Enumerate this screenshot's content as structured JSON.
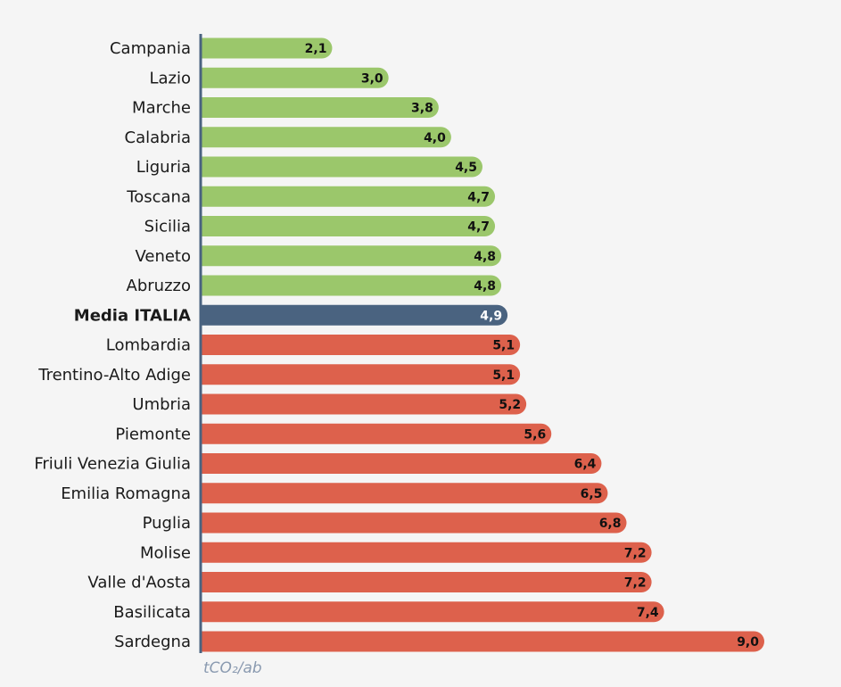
{
  "chart_data": {
    "type": "bar",
    "orientation": "horizontal",
    "categories": [
      "Campania",
      "Lazio",
      "Marche",
      "Calabria",
      "Liguria",
      "Toscana",
      "Sicilia",
      "Veneto",
      "Abruzzo",
      "Media ITALIA",
      "Lombardia",
      "Trentino-Alto Adige",
      "Umbria",
      "Piemonte",
      "Friuli Venezia Giulia",
      "Emilia Romagna",
      "Puglia",
      "Molise",
      "Valle d'Aosta",
      "Basilicata",
      "Sardegna"
    ],
    "values": [
      2.1,
      3.0,
      3.8,
      4.0,
      4.5,
      4.7,
      4.7,
      4.8,
      4.8,
      4.9,
      5.1,
      5.1,
      5.2,
      5.6,
      6.4,
      6.5,
      6.8,
      7.2,
      7.2,
      7.4,
      9.0
    ],
    "value_labels": [
      "2,1",
      "3,0",
      "3,8",
      "4,0",
      "4,5",
      "4,7",
      "4,7",
      "4,8",
      "4,8",
      "4,9",
      "5,1",
      "5,1",
      "5,2",
      "5,6",
      "6,4",
      "6,5",
      "6,8",
      "7,2",
      "7,2",
      "7,4",
      "9,0"
    ],
    "highlight_category": "Media ITALIA",
    "unit_label": "tCO₂/ab",
    "xlim": [
      0,
      9.0
    ],
    "grid": false,
    "colors": {
      "below_average": "#9bc76b",
      "average": "#4a6380",
      "above_average": "#dd614c",
      "axis": "#4a6380",
      "background": "#f5f5f5"
    }
  }
}
